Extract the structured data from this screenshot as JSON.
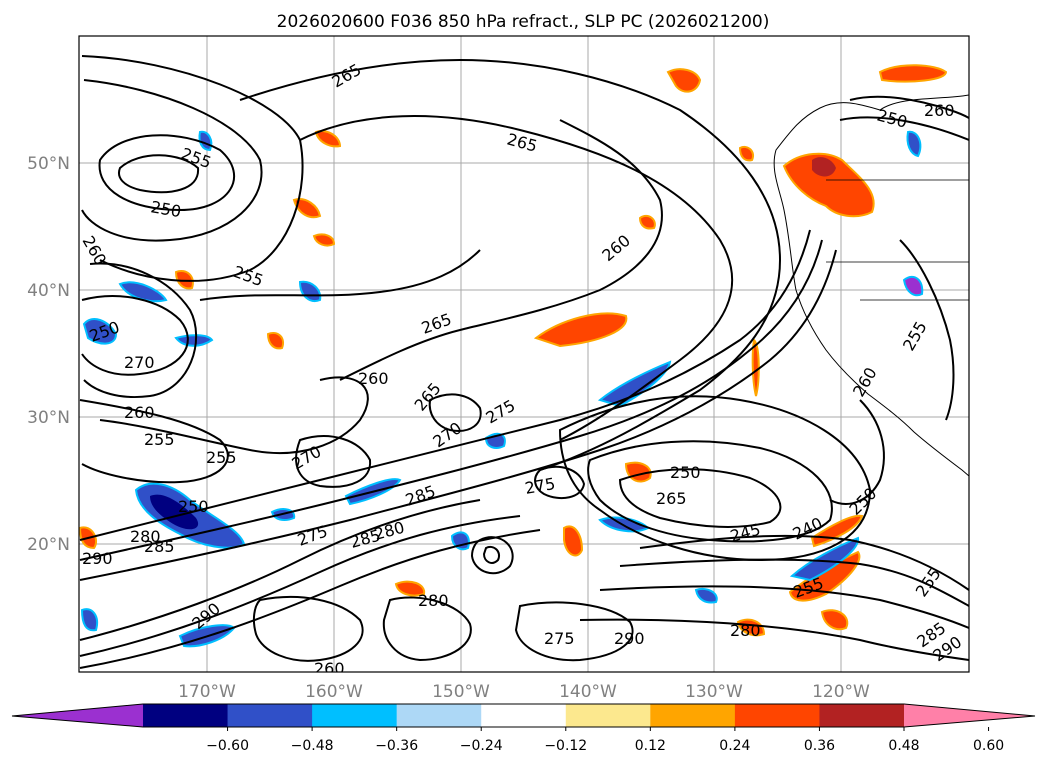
{
  "title": "2026020600 F036 850 hPa refract., SLP PC (2026021200)",
  "map": {
    "lat_labels": [
      "50°N",
      "40°N",
      "30°N",
      "20°N"
    ],
    "lon_labels": [
      "170°W",
      "160°W",
      "150°W",
      "140°W",
      "130°W",
      "120°W"
    ],
    "grid": true,
    "contour_labels": [
      {
        "text": "265"
      },
      {
        "text": "255"
      },
      {
        "text": "250"
      },
      {
        "text": "260"
      },
      {
        "text": "265"
      },
      {
        "text": "255"
      },
      {
        "text": "250"
      },
      {
        "text": "270"
      },
      {
        "text": "260"
      },
      {
        "text": "265"
      },
      {
        "text": "260"
      },
      {
        "text": "255"
      },
      {
        "text": "255"
      },
      {
        "text": "250"
      },
      {
        "text": "270"
      },
      {
        "text": "265"
      },
      {
        "text": "270"
      },
      {
        "text": "275"
      },
      {
        "text": "285"
      },
      {
        "text": "280"
      },
      {
        "text": "285"
      },
      {
        "text": "290"
      },
      {
        "text": "280"
      },
      {
        "text": "285"
      },
      {
        "text": "290"
      },
      {
        "text": "275"
      },
      {
        "text": "280"
      },
      {
        "text": "290"
      },
      {
        "text": "260"
      },
      {
        "text": "275"
      },
      {
        "text": "250"
      },
      {
        "text": "265"
      },
      {
        "text": "245"
      },
      {
        "text": "240"
      },
      {
        "text": "250"
      },
      {
        "text": "255"
      },
      {
        "text": "275"
      },
      {
        "text": "260"
      },
      {
        "text": "280"
      },
      {
        "text": "285"
      },
      {
        "text": "290"
      },
      {
        "text": "255"
      },
      {
        "text": "250"
      },
      {
        "text": "260"
      },
      {
        "text": "255"
      },
      {
        "text": "260"
      }
    ]
  },
  "colorbar": {
    "tick_labels": [
      "−0.60",
      "−0.48",
      "−0.36",
      "−0.24",
      "−0.12",
      "0.12",
      "0.24",
      "0.36",
      "0.48",
      "0.60"
    ],
    "colors": [
      "#9b30d0",
      "#000080",
      "#3050c8",
      "#00bfff",
      "#add8f6",
      "#ffffff",
      "#fce88e",
      "#ffa500",
      "#ff4500",
      "#b22222",
      "#ff80a8"
    ]
  }
}
